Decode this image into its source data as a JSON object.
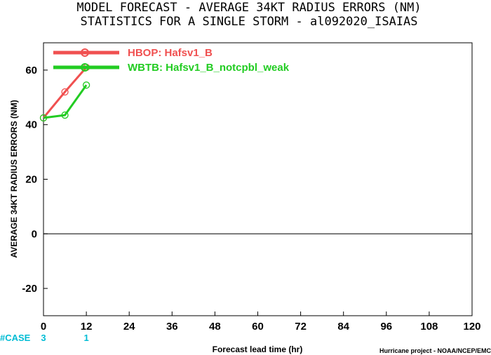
{
  "title": {
    "line1": "MODEL FORECAST - AVERAGE 34KT RADIUS ERRORS (NM)",
    "line2": "STATISTICS FOR A SINGLE STORM - al092020_ISAIAS"
  },
  "footer": {
    "credit": "Hurricane project - NOAA/NCEP/EMC"
  },
  "case_row": {
    "label": "#CASE",
    "counts": [
      {
        "x": 0,
        "value": "3"
      },
      {
        "x": 12,
        "value": "1"
      }
    ]
  },
  "colors": {
    "HBOP": "#f05050",
    "WBTB": "#22cc22",
    "case": "#00bcd4"
  },
  "chart_data": {
    "type": "line",
    "xlabel": "Forecast lead time (hr)",
    "ylabel": "AVERAGE 34KT RADIUS ERRORS (NM)",
    "xlim": [
      0,
      120
    ],
    "ylim": [
      -30,
      70
    ],
    "xticks": [
      0,
      12,
      24,
      36,
      48,
      60,
      72,
      84,
      96,
      108,
      120
    ],
    "yticks": [
      -20,
      0,
      20,
      40,
      60
    ],
    "reference_line_y": 0,
    "grid": false,
    "legend_position": "top-left",
    "x": [
      0,
      6,
      12
    ],
    "series": [
      {
        "id": "HBOP",
        "name": "HBOP: Hafsv1_B",
        "values": [
          42.5,
          52,
          61
        ]
      },
      {
        "id": "WBTB",
        "name": "WBTB: Hafsv1_B_notcpbl_weak",
        "values": [
          42.5,
          43.5,
          54.5
        ]
      }
    ]
  }
}
